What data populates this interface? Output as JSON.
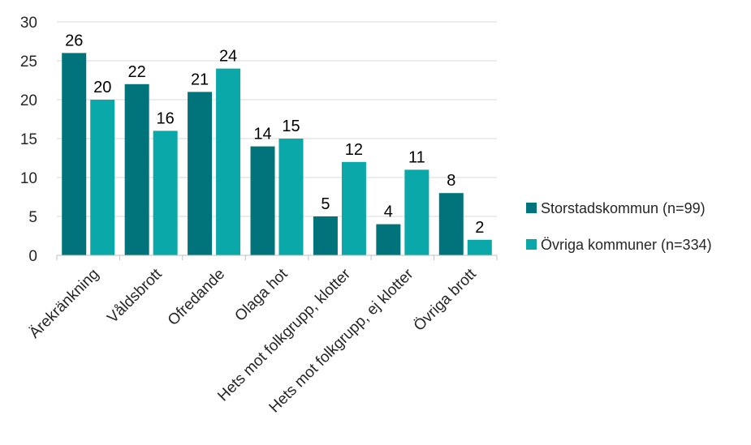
{
  "chart_data": {
    "type": "bar",
    "title": "",
    "xlabel": "",
    "ylabel": "",
    "ylim": [
      0,
      30
    ],
    "yticks": [
      0,
      5,
      10,
      15,
      20,
      25,
      30
    ],
    "grid": true,
    "legend_position": "right",
    "categories": [
      "Ärekränkning",
      "Våldsbrott",
      "Ofredande",
      "Olaga hot",
      "Hets mot folkgrupp, klotter",
      "Hets mot folkgrupp, ej klotter",
      "Övriga brott"
    ],
    "series": [
      {
        "name": "Storstadskommun (n=99)",
        "color": "#00747a",
        "values": [
          26,
          22,
          21,
          14,
          5,
          4,
          8
        ]
      },
      {
        "name": "Övriga kommuner (n=334)",
        "color": "#0aa8a8",
        "values": [
          20,
          16,
          24,
          15,
          12,
          11,
          2
        ]
      }
    ]
  }
}
